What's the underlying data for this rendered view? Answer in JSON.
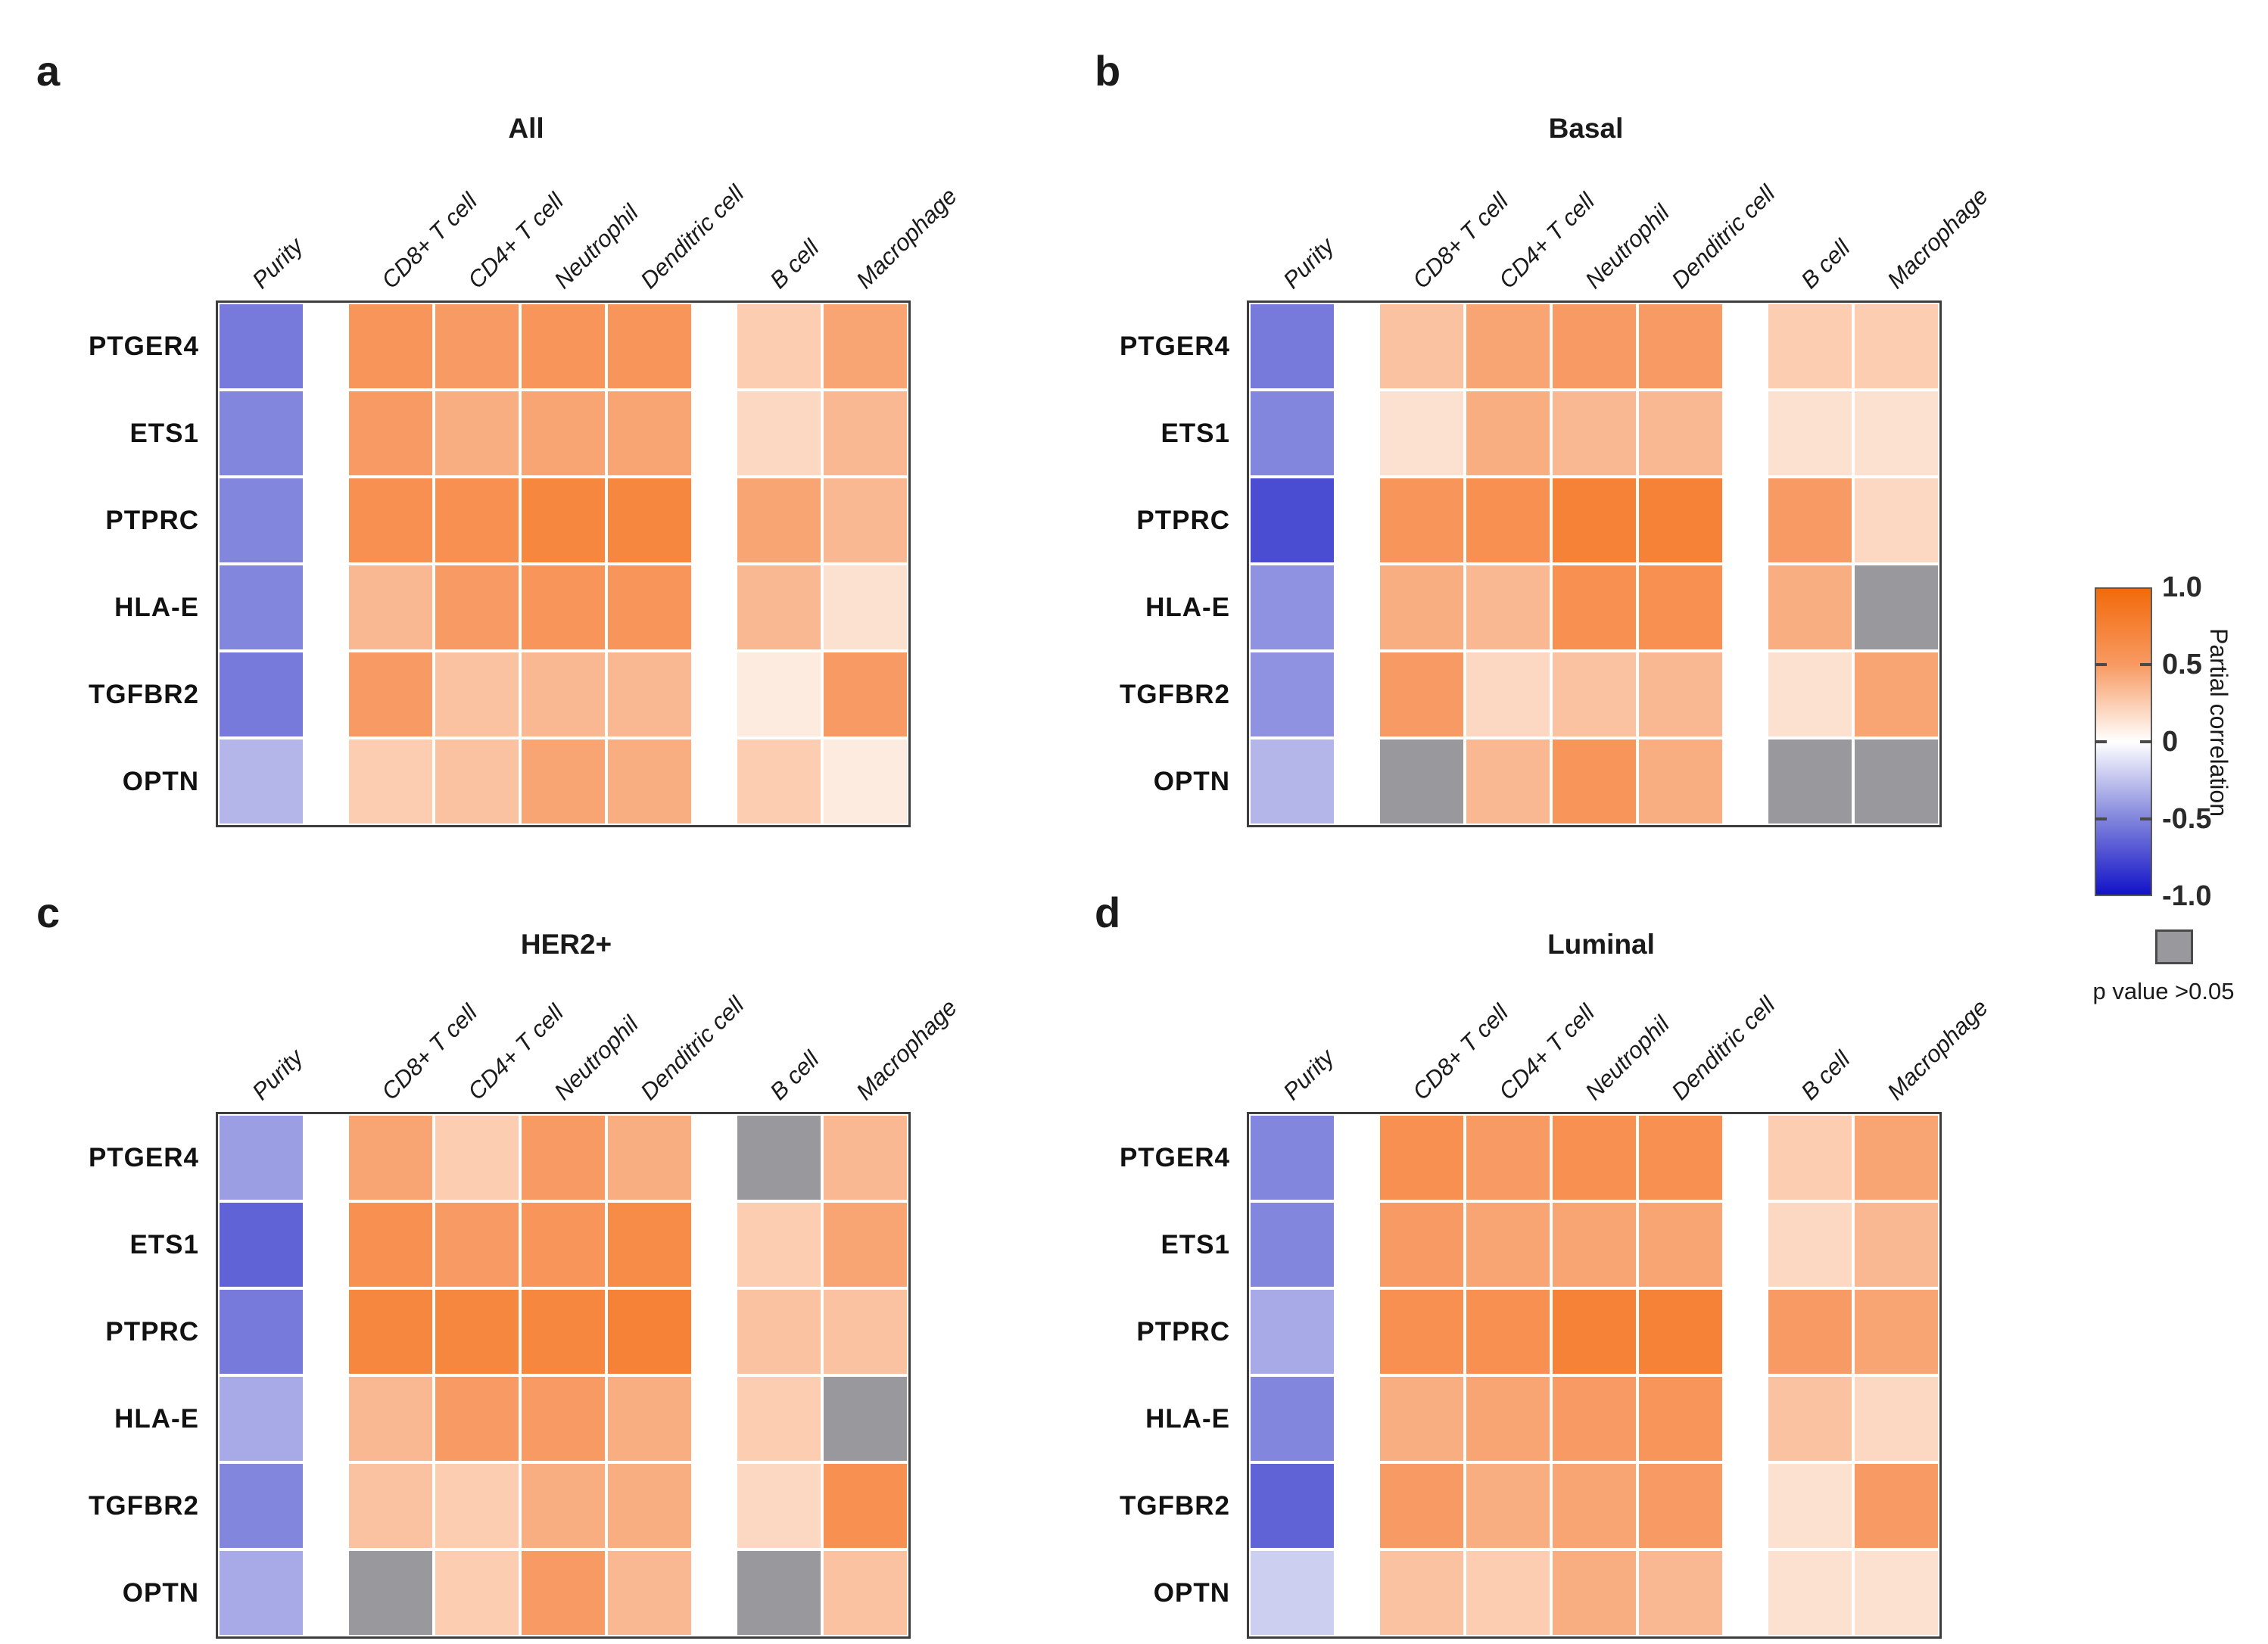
{
  "chart_data": {
    "type": "heatmap",
    "rows": [
      "PTGER4",
      "ETS1",
      "PTPRC",
      "HLA-E",
      "TGFBR2",
      "OPTN"
    ],
    "columns": [
      "Purity",
      "CD8+ T cell",
      "CD4+ T cell",
      "Neutrophil",
      "Denditric cell",
      "B cell",
      "Macrophage"
    ],
    "gap_after_column_indices": [
      0,
      4
    ],
    "value_range": [
      -1,
      1
    ],
    "ns_code": "NS",
    "colors": {
      "positive_max": "#f26a0a",
      "positive_mid": "#f89a63",
      "zero": "#ffffff",
      "negative_mid": "#8286dc",
      "negative_max": "#1212c8",
      "not_significant": "#98989d"
    },
    "panels": [
      {
        "letter": "a",
        "title": "All",
        "values": [
          [
            -0.55,
            0.55,
            0.5,
            0.55,
            0.55,
            0.25,
            0.45
          ],
          [
            -0.5,
            0.5,
            0.4,
            0.45,
            0.45,
            0.2,
            0.35
          ],
          [
            -0.5,
            0.6,
            0.6,
            0.7,
            0.7,
            0.45,
            0.35
          ],
          [
            -0.5,
            0.35,
            0.5,
            0.55,
            0.55,
            0.35,
            0.15
          ],
          [
            -0.55,
            0.5,
            0.3,
            0.35,
            0.35,
            0.1,
            0.5
          ],
          [
            -0.3,
            0.25,
            0.3,
            0.45,
            0.4,
            0.25,
            0.1
          ]
        ]
      },
      {
        "letter": "b",
        "title": "Basal",
        "values": [
          [
            -0.55,
            0.3,
            0.45,
            0.5,
            0.5,
            0.25,
            0.25
          ],
          [
            -0.5,
            0.15,
            0.4,
            0.35,
            0.35,
            0.15,
            0.15
          ],
          [
            -0.75,
            0.55,
            0.6,
            0.75,
            0.75,
            0.5,
            0.2
          ],
          [
            -0.45,
            0.4,
            0.35,
            0.6,
            0.6,
            0.4,
            "NS"
          ],
          [
            -0.45,
            0.5,
            0.2,
            0.3,
            0.35,
            0.15,
            0.45
          ],
          [
            -0.3,
            "NS",
            0.35,
            0.55,
            0.4,
            "NS",
            "NS"
          ]
        ]
      },
      {
        "letter": "c",
        "title": "HER2+",
        "values": [
          [
            -0.4,
            0.45,
            0.25,
            0.5,
            0.4,
            "NS",
            0.35
          ],
          [
            -0.65,
            0.6,
            0.5,
            0.55,
            0.65,
            0.25,
            0.45
          ],
          [
            -0.55,
            0.7,
            0.7,
            0.7,
            0.75,
            0.3,
            0.3
          ],
          [
            -0.35,
            0.35,
            0.5,
            0.5,
            0.4,
            0.25,
            "NS"
          ],
          [
            -0.5,
            0.3,
            0.25,
            0.4,
            0.4,
            0.2,
            0.6
          ],
          [
            -0.35,
            "NS",
            0.25,
            0.5,
            0.35,
            "NS",
            0.3
          ]
        ]
      },
      {
        "letter": "d",
        "title": "Luminal",
        "values": [
          [
            -0.5,
            0.6,
            0.5,
            0.6,
            0.6,
            0.25,
            0.45
          ],
          [
            -0.5,
            0.5,
            0.45,
            0.45,
            0.45,
            0.2,
            0.35
          ],
          [
            -0.35,
            0.6,
            0.6,
            0.75,
            0.75,
            0.5,
            0.45
          ],
          [
            -0.5,
            0.4,
            0.45,
            0.5,
            0.55,
            0.3,
            0.2
          ],
          [
            -0.65,
            0.5,
            0.4,
            0.45,
            0.5,
            0.15,
            0.5
          ],
          [
            -0.2,
            0.3,
            0.25,
            0.4,
            0.35,
            0.15,
            0.15
          ]
        ]
      }
    ],
    "legend": {
      "title": "Partial correlation",
      "ticks": [
        "1.0",
        "0.5",
        "0",
        "-0.5",
        "-1.0"
      ],
      "ns_label": "p value >0.05"
    }
  }
}
